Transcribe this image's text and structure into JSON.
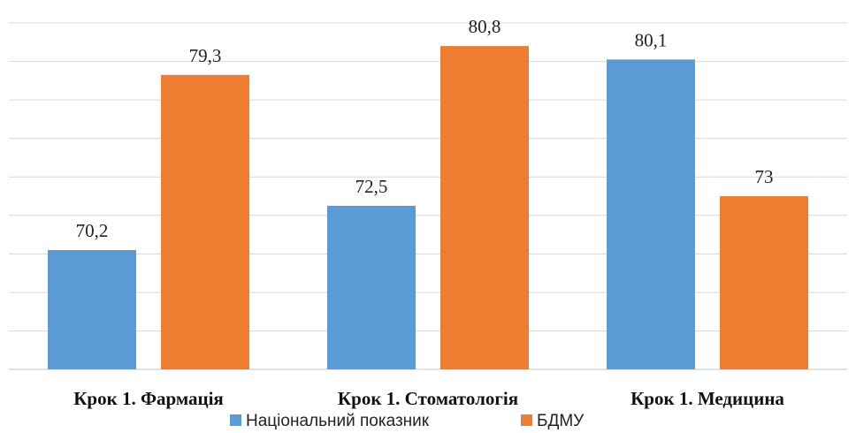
{
  "chart_data": {
    "type": "bar",
    "title": "",
    "xlabel": "",
    "ylabel": "",
    "ylim": [
      64,
      82
    ],
    "grid": true,
    "legend_position": "bottom",
    "categories": [
      "Крок 1. Фармація",
      "Крок 1. Стоматологія",
      "Крок 1. Медицина"
    ],
    "series": [
      {
        "name": "Національний показник",
        "color": "#5B9BD5",
        "values": [
          70.2,
          72.5,
          80.1
        ],
        "labels": [
          "70,2",
          "72,5",
          "80,1"
        ]
      },
      {
        "name": "БДМУ",
        "color": "#ED7D31",
        "values": [
          79.3,
          80.8,
          73
        ],
        "labels": [
          "79,3",
          "80,8",
          "73"
        ]
      }
    ]
  }
}
